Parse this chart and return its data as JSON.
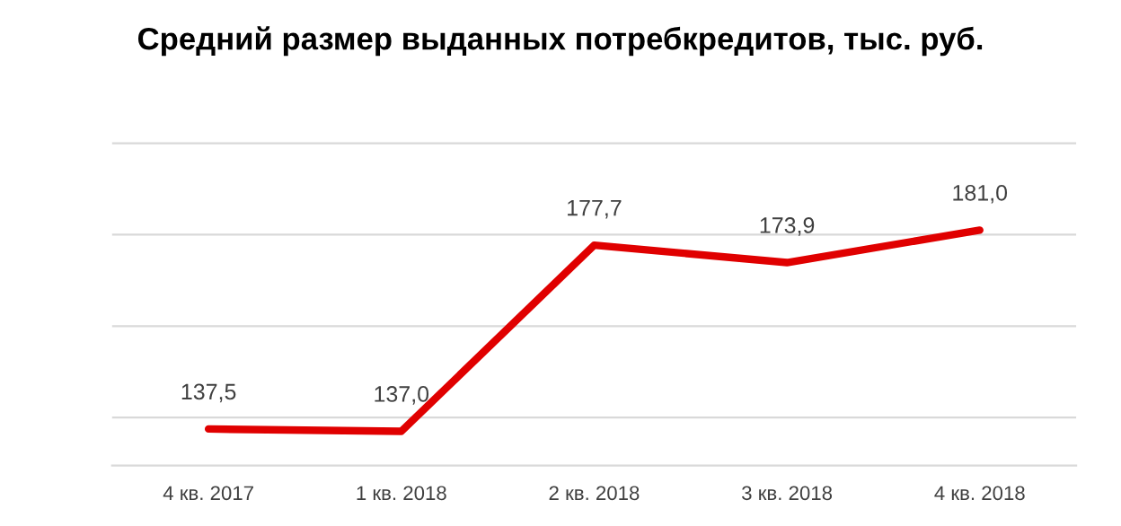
{
  "chart_data": {
    "type": "line",
    "title": "Средний размер выданных потребкредитов, тыс. руб.",
    "categories": [
      "4 кв. 2017",
      "1 кв. 2018",
      "2 кв. 2018",
      "3 кв. 2018",
      "4 кв. 2018"
    ],
    "series": [
      {
        "color": "#e00000",
        "values": [
          137.5,
          137.0,
          177.7,
          173.9,
          181.0
        ],
        "value_labels": [
          "137,5",
          "137,0",
          "177,7",
          "173,9",
          "181,0"
        ]
      }
    ],
    "grid": "y",
    "tick_labels": "x",
    "legend": false,
    "marker": "none",
    "line_style": "solid"
  }
}
